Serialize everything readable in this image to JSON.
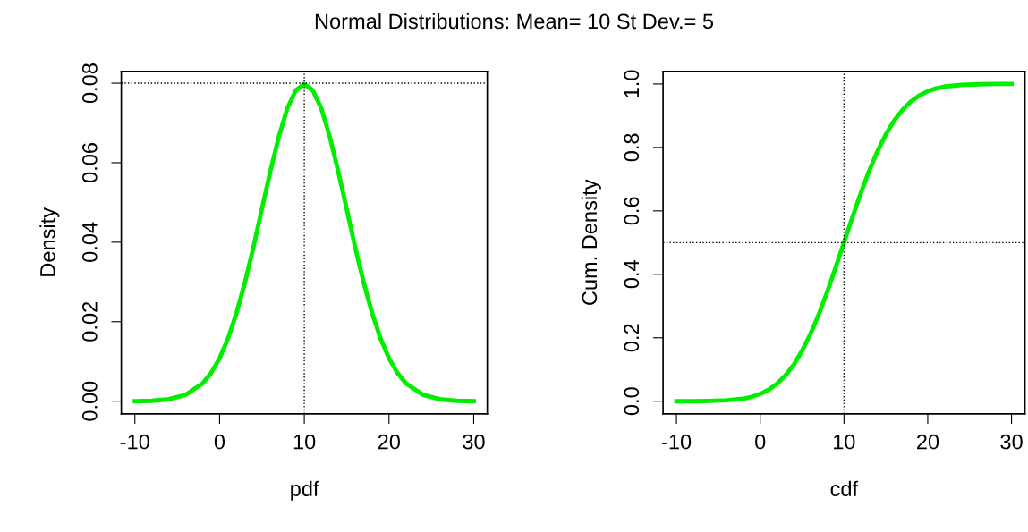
{
  "chart_data": [
    {
      "type": "line",
      "title": "Normal Distributions: Mean= 10 St Dev.= 5",
      "xlabel": "pdf",
      "ylabel": "Density",
      "x": [
        -10,
        -8,
        -6,
        -4,
        -2,
        -1,
        0,
        1,
        2,
        3,
        4,
        5,
        6,
        7,
        8,
        9,
        10,
        11,
        12,
        13,
        14,
        15,
        16,
        17,
        18,
        19,
        20,
        21,
        22,
        24,
        26,
        28,
        30
      ],
      "series": [
        {
          "color": "#00ee00",
          "values": [
            0.0,
            0.0001,
            0.0005,
            0.0016,
            0.0045,
            0.0071,
            0.0108,
            0.0158,
            0.0222,
            0.0299,
            0.0388,
            0.0484,
            0.0579,
            0.0666,
            0.0737,
            0.0782,
            0.0798,
            0.0782,
            0.0737,
            0.0666,
            0.0579,
            0.0484,
            0.0388,
            0.0299,
            0.0222,
            0.0158,
            0.0108,
            0.0071,
            0.0045,
            0.0016,
            0.0005,
            0.0001,
            0.0
          ]
        }
      ],
      "xlim": [
        -11.6,
        31.6
      ],
      "xticks": [
        -10,
        0,
        10,
        20,
        30
      ],
      "ylim": [
        -0.0032,
        0.083
      ],
      "yticks": [
        {
          "value": 0,
          "label": "0.00"
        },
        {
          "value": 0.02,
          "label": "0.02"
        },
        {
          "value": 0.04,
          "label": "0.04"
        },
        {
          "value": 0.06,
          "label": "0.06"
        },
        {
          "value": 0.08,
          "label": "0.08"
        }
      ],
      "ref_lines": [
        {
          "axis": "x",
          "value": 10,
          "line_style": "dotted",
          "color": "#000000"
        },
        {
          "axis": "y",
          "value": 0.08,
          "line_style": "dotted",
          "color": "#000000"
        }
      ],
      "grid": false,
      "legend": false,
      "line_style": "solid",
      "marker": "none"
    },
    {
      "type": "line",
      "xlabel": "cdf",
      "ylabel": "Cum. Density",
      "x": [
        -10,
        -8,
        -6,
        -4,
        -2,
        -1,
        0,
        1,
        2,
        3,
        4,
        5,
        6,
        7,
        8,
        9,
        10,
        11,
        12,
        13,
        14,
        15,
        16,
        17,
        18,
        19,
        20,
        21,
        22,
        24,
        26,
        28,
        30
      ],
      "series": [
        {
          "color": "#00ee00",
          "values": [
            0.0,
            0.0,
            0.001,
            0.003,
            0.008,
            0.014,
            0.023,
            0.036,
            0.055,
            0.081,
            0.115,
            0.159,
            0.212,
            0.274,
            0.345,
            0.421,
            0.5,
            0.579,
            0.655,
            0.726,
            0.788,
            0.841,
            0.885,
            0.919,
            0.945,
            0.964,
            0.977,
            0.986,
            0.992,
            0.997,
            0.999,
            1.0,
            1.0
          ]
        }
      ],
      "xlim": [
        -11.6,
        31.6
      ],
      "xticks": [
        -10,
        0,
        10,
        20,
        30
      ],
      "ylim": [
        -0.04,
        1.04
      ],
      "yticks": [
        {
          "value": 0,
          "label": "0.0"
        },
        {
          "value": 0.2,
          "label": "0.2"
        },
        {
          "value": 0.4,
          "label": "0.4"
        },
        {
          "value": 0.6,
          "label": "0.6"
        },
        {
          "value": 0.8,
          "label": "0.8"
        },
        {
          "value": 1.0,
          "label": "1.0"
        }
      ],
      "ref_lines": [
        {
          "axis": "x",
          "value": 10,
          "line_style": "dotted",
          "color": "#000000"
        },
        {
          "axis": "y",
          "value": 0.5,
          "line_style": "dotted",
          "color": "#000000"
        }
      ],
      "grid": false,
      "legend": false,
      "line_style": "solid",
      "marker": "none"
    }
  ]
}
